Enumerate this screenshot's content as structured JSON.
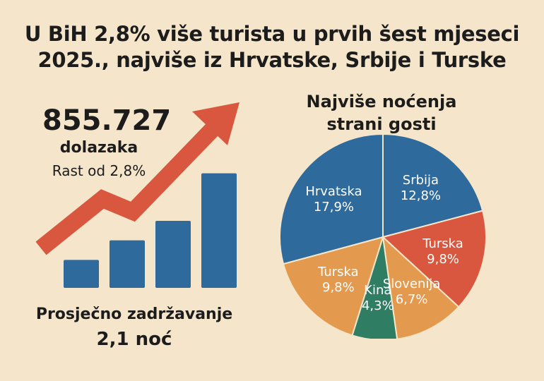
{
  "title": {
    "line1": "U BiH 2,8% više turista u prvih šest mjeseci",
    "line2": "2025., najviše iz Hrvatske, Srbije i Turske"
  },
  "arrivals": {
    "value": "855.727",
    "label": "dolazaka",
    "growth": "Rast od 2,8%"
  },
  "stay": {
    "label": "Prosječno zadržavanje",
    "value": "2,1 noć"
  },
  "colors": {
    "background": "#f5e6cb",
    "bar": "#2e6a9c",
    "arrow": "#d9573e",
    "blue": "#2e6a9c",
    "red": "#d9573e",
    "orange": "#e49a4e",
    "green": "#2f7d62"
  },
  "chart_data": [
    {
      "type": "bar",
      "categories": [
        "",
        "",
        "",
        ""
      ],
      "values": [
        20,
        34,
        48,
        82
      ],
      "ylim": [
        0,
        100
      ],
      "title": "",
      "xlabel": "",
      "ylabel": "",
      "grid": false,
      "trend_arrow": "upward"
    },
    {
      "type": "pie",
      "title": "Najviše noćenja\nstrani gosti",
      "slices": [
        {
          "label": "Srbija",
          "value_label": "12,8%",
          "value": 12.8,
          "color": "#2e6a9c"
        },
        {
          "label": "Turska",
          "value_label": "9,8%",
          "value": 9.8,
          "color": "#d9573e"
        },
        {
          "label": "Slovenija",
          "value_label": "6,7%",
          "value": 6.7,
          "color": "#e49a4e"
        },
        {
          "label": "Kina",
          "value_label": "4,3%",
          "value": 4.3,
          "color": "#2f7d62"
        },
        {
          "label": "Turska",
          "value_label": "9,8%",
          "value": 9.8,
          "color": "#e49a4e"
        },
        {
          "label": "Hrvatska",
          "value_label": "17,9%",
          "value": 17.9,
          "color": "#2e6a9c"
        }
      ],
      "legend": "none"
    }
  ]
}
